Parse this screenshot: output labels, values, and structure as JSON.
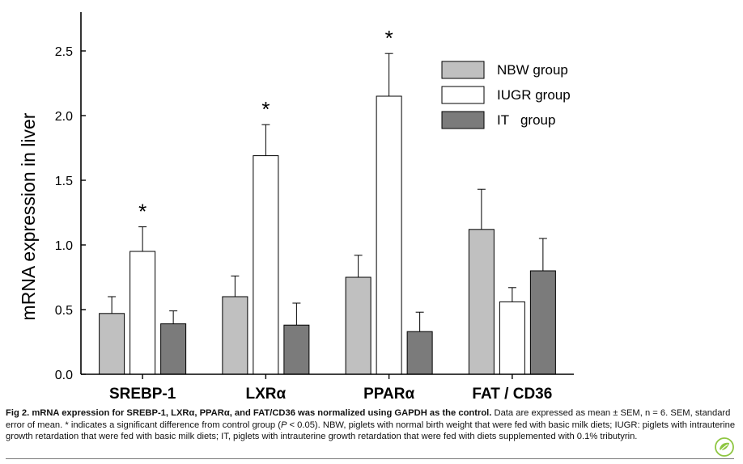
{
  "chart_data": {
    "type": "bar",
    "categories": [
      "SREBP-1",
      "LXRα",
      "PPARα",
      "FAT / CD36"
    ],
    "series": [
      {
        "name": "NBW group",
        "color": "#c0c0c0",
        "values": [
          0.47,
          0.6,
          0.75,
          1.12
        ],
        "errors": [
          0.13,
          0.16,
          0.17,
          0.31
        ]
      },
      {
        "name": "IUGR group",
        "color": "#ffffff",
        "values": [
          0.95,
          1.69,
          2.15,
          0.56
        ],
        "errors": [
          0.19,
          0.24,
          0.33,
          0.11
        ]
      },
      {
        "name": "IT   group",
        "color": "#7b7b7b",
        "values": [
          0.39,
          0.38,
          0.33,
          0.8
        ],
        "errors": [
          0.1,
          0.17,
          0.15,
          0.25
        ]
      }
    ],
    "significance": [
      {
        "category": "SREBP-1",
        "series": "IUGR group",
        "label": "*"
      },
      {
        "category": "LXRα",
        "series": "IUGR group",
        "label": "*"
      },
      {
        "category": "PPARα",
        "series": "IUGR group",
        "label": "*"
      }
    ],
    "ylabel": "mRNA  expression  in  liver",
    "xlabel": "",
    "ylim": [
      0,
      2.8
    ],
    "yticks": [
      0.0,
      0.5,
      1.0,
      1.5,
      2.0,
      2.5
    ],
    "legend_position": "top-right",
    "grid": false
  },
  "caption": {
    "lead": "Fig 2.  mRNA expression for SREBP-1, LXRα, PPARα, and FAT/CD36 was normalized using GAPDH as the control.",
    "body": " Data are expressed as mean ± SEM, n = 6. SEM, standard error of mean. * indicates a significant difference from control group (",
    "p_symbol": "P",
    "body_end": " < 0.05). NBW, piglets with normal birth weight that were fed with basic milk diets; IUGR: piglets with intrauterine growth retardation that were fed with basic milk diets; IT, piglets with intrauterine growth retardation that were fed with diets supplemented with 0.1% tributyrin."
  },
  "logo_icon": "publisher-leaf-icon"
}
